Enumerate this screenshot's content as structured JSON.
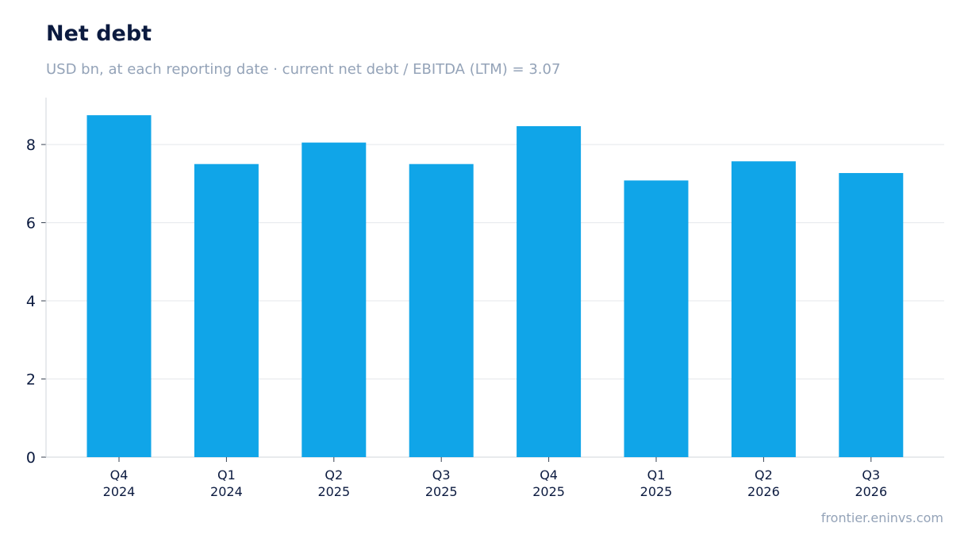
{
  "title": "Net debt",
  "subtitle": "USD bn, at each reporting date · current net debt / EBITDA (LTM) = 3.07",
  "source": "frontier.eninvs.com",
  "colors": {
    "bar": "#10a5e8",
    "grid": "#e5e7eb",
    "axis": "#d1d5db",
    "title": "#0b1a3f",
    "muted": "#94a3b8"
  },
  "chart_data": {
    "type": "bar",
    "title": "Net debt",
    "subtitle": "USD bn, at each reporting date · current net debt / EBITDA (LTM) = 3.07",
    "categories": [
      [
        "Q4",
        "2024"
      ],
      [
        "Q1",
        "2024"
      ],
      [
        "Q2",
        "2025"
      ],
      [
        "Q3",
        "2025"
      ],
      [
        "Q4",
        "2025"
      ],
      [
        "Q1",
        "2025"
      ],
      [
        "Q2",
        "2026"
      ],
      [
        "Q3",
        "2026"
      ]
    ],
    "values": [
      8.75,
      7.5,
      8.05,
      7.5,
      8.47,
      7.08,
      7.57,
      7.27
    ],
    "ylim": [
      0,
      9.2
    ],
    "yticks": [
      "0",
      "2",
      "4",
      "6",
      "8"
    ],
    "grid": true,
    "legend": "none"
  }
}
